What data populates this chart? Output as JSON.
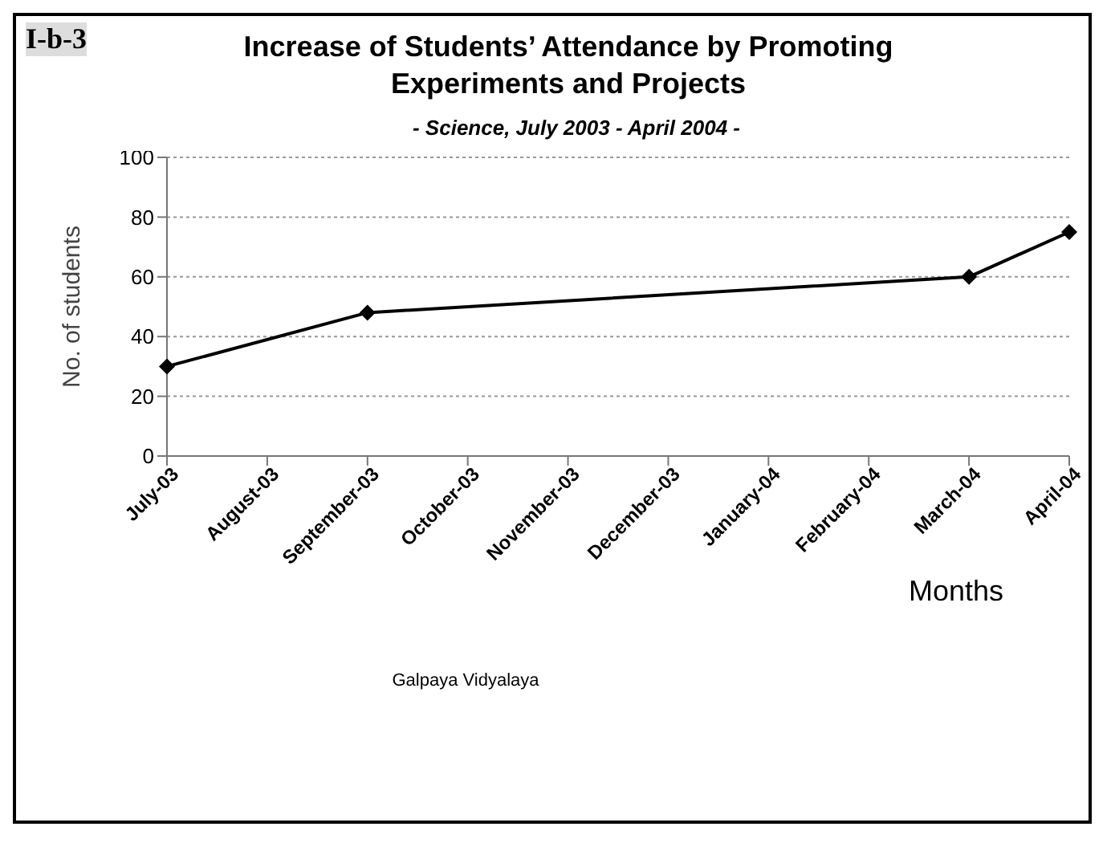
{
  "chart_data": {
    "type": "line",
    "title": "Increase of Students’ Attendance by Promoting Experiments and Projects",
    "subtitle": "- Science, July 2003 - April 2004 -",
    "xlabel": "Months",
    "ylabel": "No. of students",
    "categories": [
      "July-03",
      "August-03",
      "September-03",
      "October-03",
      "November-03",
      "December-03",
      "January-04",
      "February-04",
      "March-04",
      "April-04"
    ],
    "series": [
      {
        "color": "#000000",
        "values": [
          30,
          null,
          48,
          null,
          null,
          null,
          null,
          null,
          60,
          75
        ]
      }
    ],
    "ylim": [
      0,
      100
    ],
    "yticks": [
      0,
      20,
      40,
      60,
      80,
      100
    ],
    "grid": "y",
    "legend": false,
    "marker": "diamond",
    "line_style": "solid",
    "annotations": [
      "I-b-3",
      "Galpaya Vidyalaya"
    ]
  }
}
